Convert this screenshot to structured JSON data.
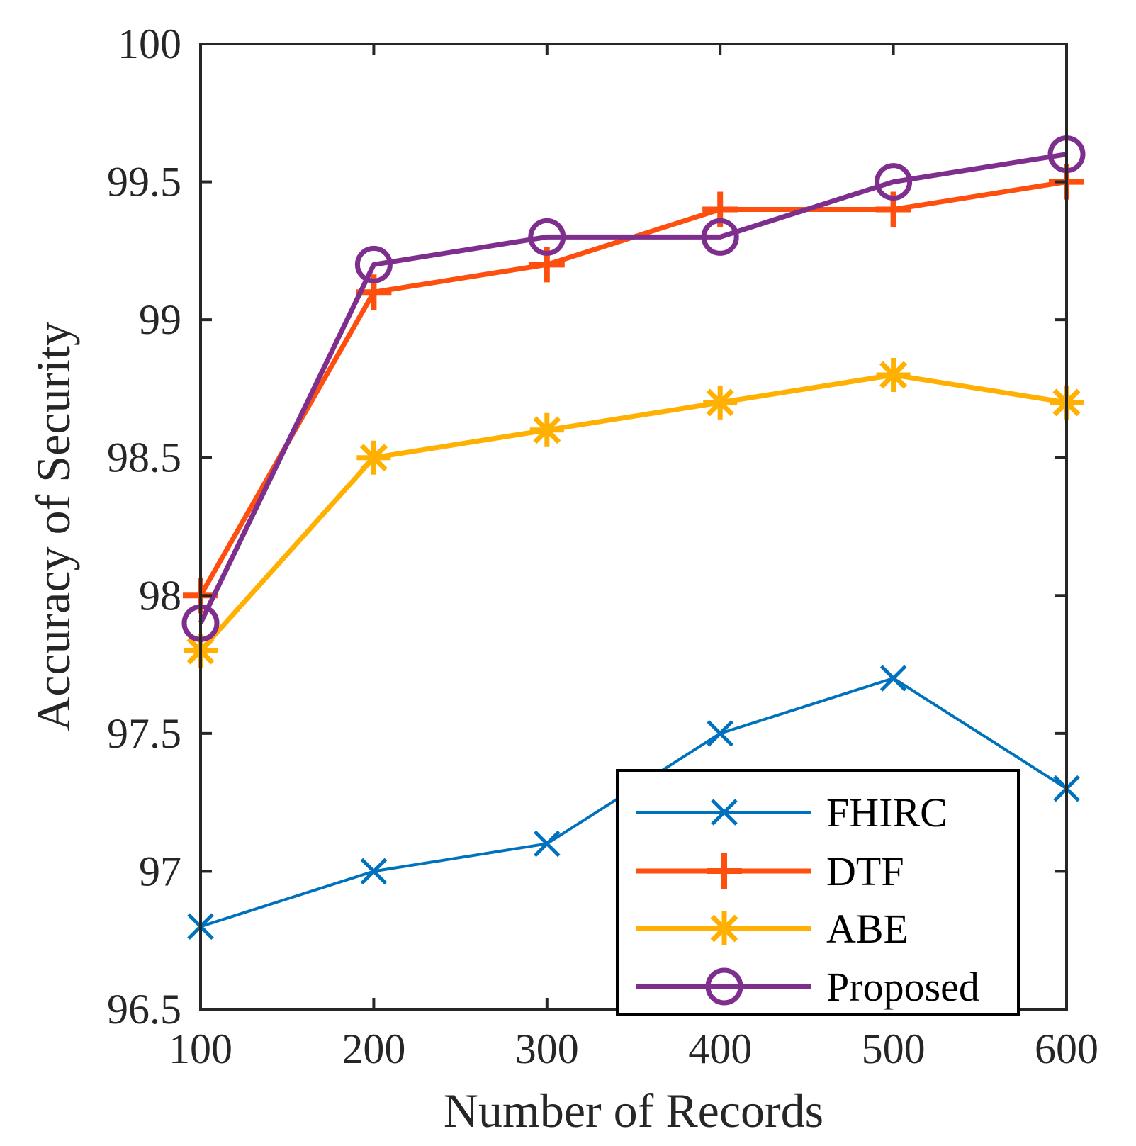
{
  "chart_data": {
    "type": "line",
    "title": "",
    "xlabel": "Number of Records",
    "ylabel": "Accuracy of Security",
    "x": [
      100,
      200,
      300,
      400,
      500,
      600
    ],
    "xticks": [
      100,
      200,
      300,
      400,
      500,
      600
    ],
    "xtick_labels": [
      "100",
      "200",
      "300",
      "400",
      "500",
      "600"
    ],
    "yticks": [
      96.5,
      97,
      97.5,
      98,
      98.5,
      99,
      99.5,
      100
    ],
    "ytick_labels": [
      "96.5",
      "97",
      "97.5",
      "98",
      "98.5",
      "99",
      "99.5",
      "100"
    ],
    "xlim": [
      100,
      600
    ],
    "ylim": [
      96.5,
      100
    ],
    "grid": false,
    "legend_position": "bottom-right",
    "series": [
      {
        "name": "FHIRC",
        "marker": "x",
        "color": "#0072BD",
        "values": [
          96.8,
          97.0,
          97.1,
          97.5,
          97.7,
          97.3
        ]
      },
      {
        "name": "DTF",
        "marker": "+",
        "color": "#FF4F0F",
        "values": [
          98.0,
          99.1,
          99.2,
          99.4,
          99.4,
          99.5
        ]
      },
      {
        "name": "ABE",
        "marker": "*",
        "color": "#FFB000",
        "values": [
          97.8,
          98.5,
          98.6,
          98.7,
          98.8,
          98.7
        ]
      },
      {
        "name": "Proposed",
        "marker": "o",
        "color": "#7E2F8E",
        "values": [
          97.9,
          99.2,
          99.3,
          99.3,
          99.5,
          99.6
        ]
      }
    ]
  }
}
